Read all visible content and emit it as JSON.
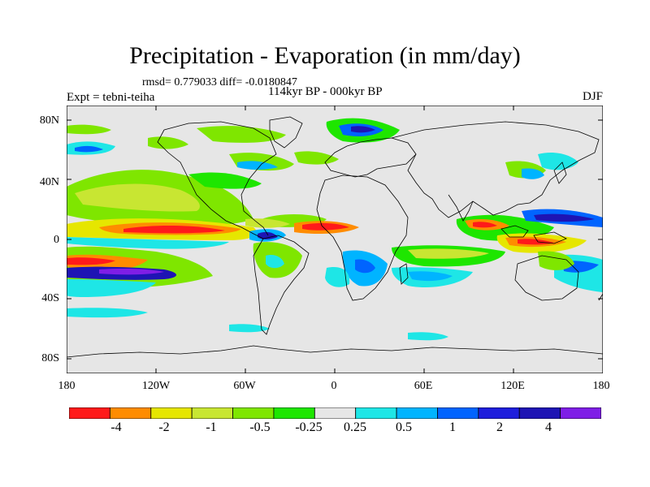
{
  "title": "Precipitation - Evaporation (in mm/day)",
  "stats": "rmsd= 0.779033 diff= -0.0180847",
  "expt": "Expt = tebni-teiha",
  "period": "114kyr BP - 000kyr BP",
  "season": "DJF",
  "axes": {
    "y_ticks": [
      "80N",
      "40N",
      "0",
      "40S",
      "80S"
    ],
    "x_ticks": [
      "180",
      "120W",
      "60W",
      "0",
      "60E",
      "120E",
      "180"
    ]
  },
  "colorbar": {
    "labels": [
      "-4",
      "-2",
      "-1",
      "-0.5",
      "-0.25",
      "0.25",
      "0.5",
      "1",
      "2",
      "4"
    ],
    "colors": [
      "#ff1a1a",
      "#ff8c00",
      "#e6e600",
      "#c8e632",
      "#7fe600",
      "#1ee600",
      "#e6e6e6",
      "#1ee6e6",
      "#00b4ff",
      "#0064ff",
      "#1e1edc",
      "#1e14b4",
      "#7f1ee6"
    ]
  },
  "colors": {
    "land": "#e6e6e6",
    "frame": "#000000"
  }
}
